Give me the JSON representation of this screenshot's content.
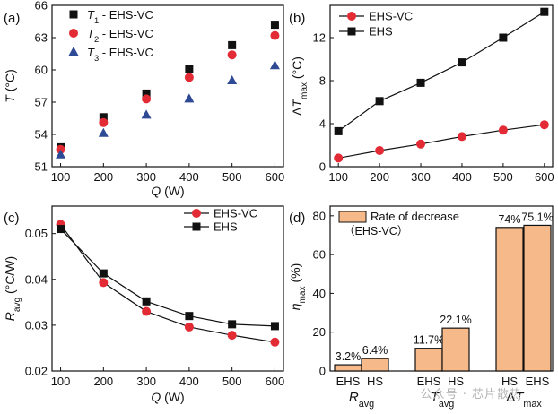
{
  "panels": {
    "a": "(a)",
    "b": "(b)",
    "c": "(c)",
    "d": "(d)"
  },
  "watermark": "公众号 · 芯片散热",
  "chart_data": [
    {
      "type": "scatter",
      "panel": "a",
      "xlabel": "Q (W)",
      "ylabel": "T (°C)",
      "xlim": [
        80,
        620
      ],
      "ylim": [
        51,
        66
      ],
      "xticks": [
        100,
        200,
        300,
        400,
        500,
        600
      ],
      "yticks": [
        51,
        54,
        57,
        60,
        63,
        66
      ],
      "legend_position": "top-left",
      "x": [
        100,
        200,
        300,
        400,
        500,
        600
      ],
      "series": [
        {
          "name": "T1 - EHS-VC",
          "marker": "square",
          "color": "#111111",
          "values": [
            52.8,
            55.6,
            57.8,
            60.1,
            62.3,
            64.2
          ]
        },
        {
          "name": "T2 - EHS-VC",
          "marker": "circle",
          "color": "#e32b35",
          "values": [
            52.6,
            55.1,
            57.3,
            59.3,
            61.4,
            63.2
          ]
        },
        {
          "name": "T3 - EHS-VC",
          "marker": "triangle",
          "color": "#2f4a95",
          "values": [
            52.1,
            54.1,
            55.8,
            57.3,
            59.0,
            60.4
          ]
        }
      ]
    },
    {
      "type": "line",
      "panel": "b",
      "xlabel": "",
      "ylabel": "ΔTmax (°C)",
      "xlim": [
        80,
        620
      ],
      "ylim": [
        0,
        15
      ],
      "xticks": [
        100,
        200,
        300,
        400,
        500,
        600
      ],
      "yticks": [
        0,
        4,
        8,
        12
      ],
      "legend_position": "top-left",
      "x": [
        100,
        200,
        300,
        400,
        500,
        600
      ],
      "series": [
        {
          "name": "EHS-VC",
          "marker": "circle",
          "color": "#e32b35",
          "values": [
            0.8,
            1.5,
            2.1,
            2.8,
            3.4,
            3.9
          ]
        },
        {
          "name": "EHS",
          "marker": "square",
          "color": "#111111",
          "values": [
            3.3,
            6.1,
            7.8,
            9.7,
            12.0,
            14.4
          ]
        }
      ]
    },
    {
      "type": "line",
      "panel": "c",
      "xlabel": "Q (W)",
      "ylabel": "Ravg (°C/W)",
      "xlim": [
        80,
        620
      ],
      "ylim": [
        0.02,
        0.056
      ],
      "xticks": [
        100,
        200,
        300,
        400,
        500,
        600
      ],
      "yticks": [
        0.02,
        0.03,
        0.04,
        0.05
      ],
      "legend_position": "top-right",
      "x": [
        100,
        200,
        300,
        400,
        500,
        600
      ],
      "series": [
        {
          "name": "EHS-VC",
          "marker": "circle",
          "color": "#e32b35",
          "values": [
            0.052,
            0.0393,
            0.033,
            0.0296,
            0.0278,
            0.0263
          ]
        },
        {
          "name": "EHS",
          "marker": "square",
          "color": "#111111",
          "values": [
            0.051,
            0.0413,
            0.0352,
            0.032,
            0.0302,
            0.0298
          ]
        }
      ]
    },
    {
      "type": "bar",
      "panel": "d",
      "xlabel": "",
      "ylabel": "ηmax (%)",
      "ylim": [
        0,
        85
      ],
      "yticks": [
        0,
        20,
        40,
        60,
        80
      ],
      "legend_position": "top-left",
      "legend_title": "Rate of decrease",
      "legend_sub": "（EHS-VC）",
      "bar_color": "#f6b98a",
      "groups": [
        "Ravg",
        "Tavg",
        "ΔTmax"
      ],
      "categories": [
        "EHS",
        "HS",
        "EHS",
        "HS",
        "HS",
        "EHS"
      ],
      "values": [
        3.2,
        6.4,
        11.7,
        22.1,
        74,
        75.1
      ],
      "value_labels": [
        "3.2%",
        "6.4%",
        "11.7%",
        "22.1%",
        "74%",
        "75.1%"
      ]
    }
  ]
}
